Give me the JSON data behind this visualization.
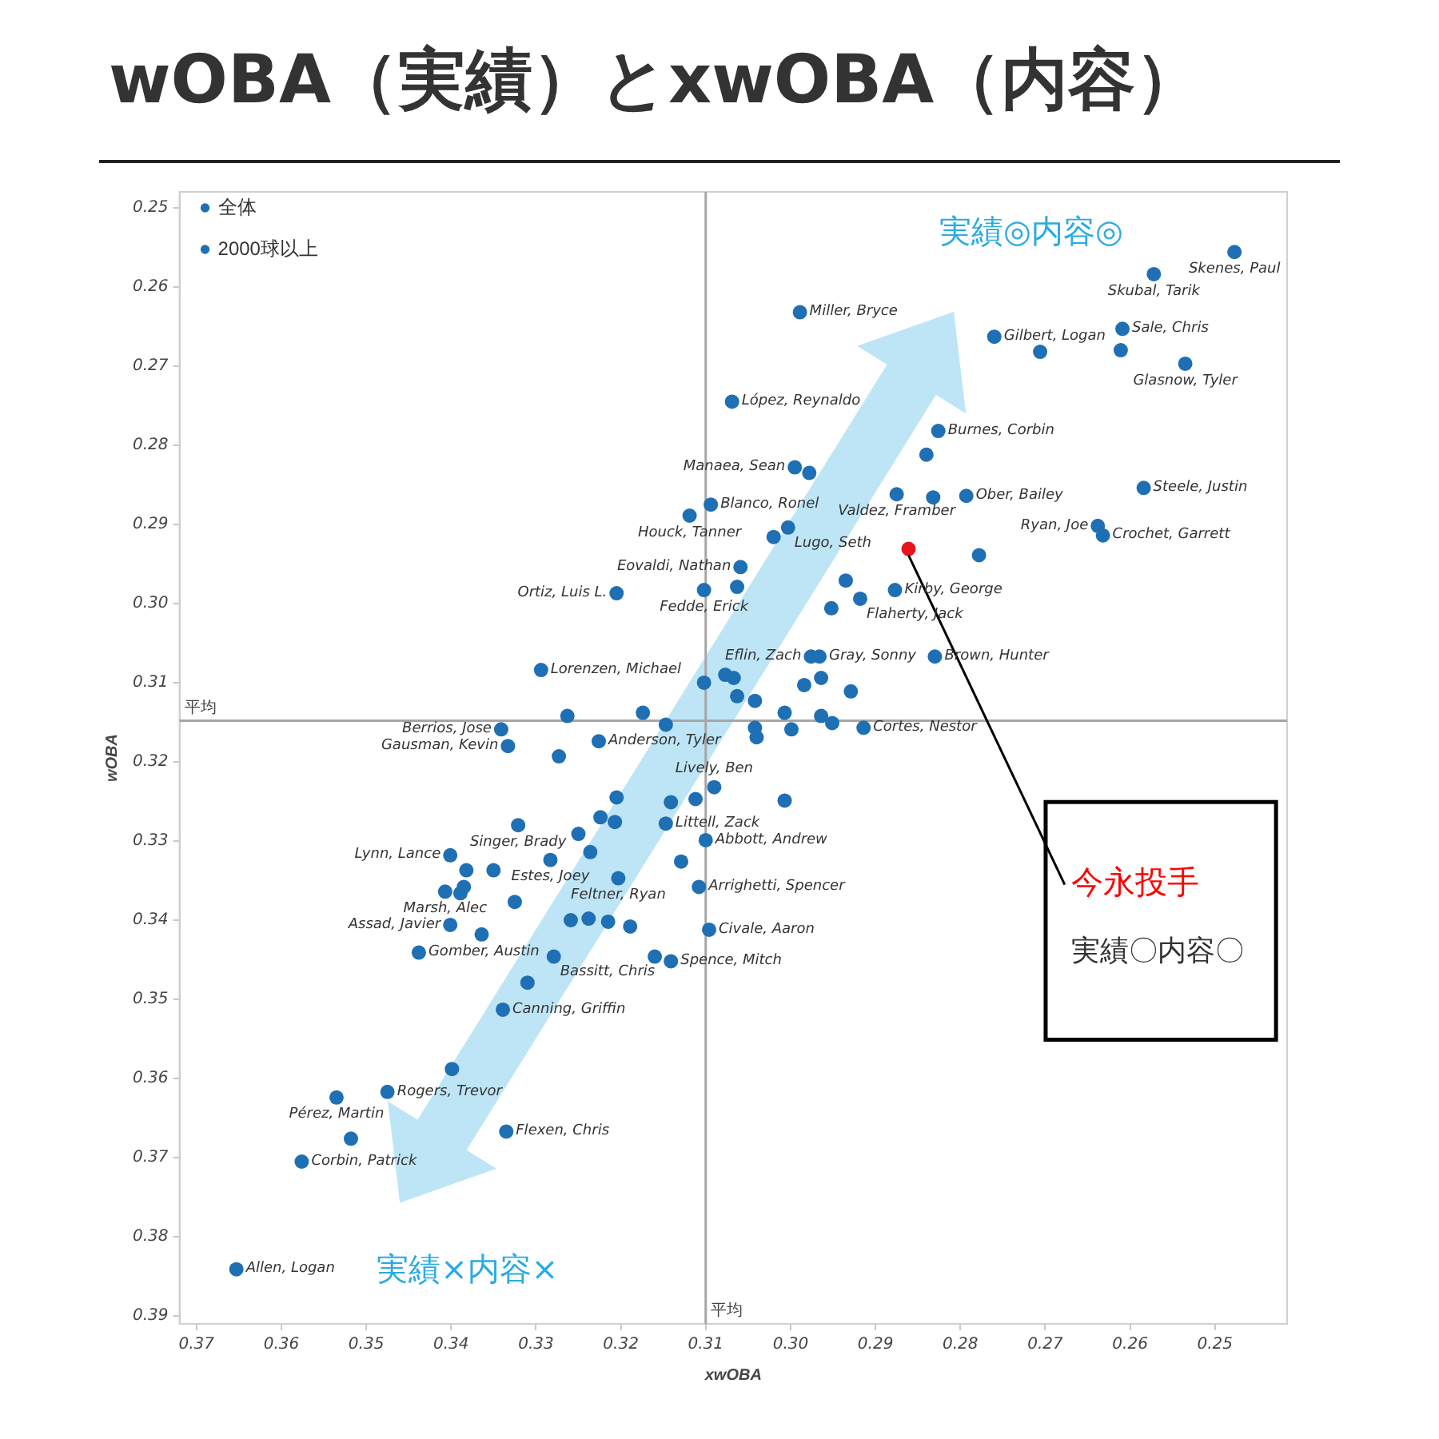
{
  "chart_data": {
    "type": "scatter",
    "title": "wOBA（実績）とxwOBA（内容）",
    "xlabel": "xwOBA",
    "ylabel": "wOBA",
    "xlim": [
      0.372,
      0.2415
    ],
    "ylim": [
      0.391,
      0.248
    ],
    "xticks": [
      0.37,
      0.36,
      0.35,
      0.34,
      0.33,
      0.32,
      0.31,
      {
        "value": 0.3,
        "label": "0.30"
      },
      0.29,
      0.28,
      0.27,
      0.26,
      0.25
    ],
    "yticks": [
      0.25,
      0.26,
      0.27,
      0.28,
      0.29,
      {
        "value": 0.3,
        "label": "0.30"
      },
      0.31,
      0.32,
      0.33,
      0.34,
      0.35,
      0.36,
      0.37,
      0.38,
      0.39
    ],
    "grid": false,
    "legend": "top left",
    "marker": "circle",
    "ref_lines": [
      {
        "axis": "x",
        "value": 0.31,
        "label": "平均",
        "color": "#a6a6a6"
      },
      {
        "axis": "y",
        "value": 0.3148,
        "label": "平均",
        "color": "#a6a6a6"
      }
    ],
    "series": [
      {
        "name": "全体",
        "color": "#1f6fb4",
        "x": [
          0.2706,
          0.2611,
          0.284,
          0.2832,
          0.2778,
          0.2978,
          0.302,
          0.3063,
          0.2935,
          0.2952,
          0.3077,
          0.3067,
          0.3102,
          0.3063,
          0.2984,
          0.2964,
          0.2929,
          0.3042,
          0.3263,
          0.3174,
          0.3147,
          0.3007,
          0.2964,
          0.2951,
          0.3042,
          0.304,
          0.2999,
          0.3273,
          0.3112,
          0.3141,
          0.3205,
          0.3007,
          0.3224,
          0.3207,
          0.325,
          0.3236,
          0.3129,
          0.3382,
          0.335,
          0.3389,
          0.3385,
          0.3325,
          0.3364,
          0.3259,
          0.3238,
          0.3215,
          0.3189,
          0.316,
          0.331,
          0.3399,
          0.3518
        ],
        "values": [
          0.2682,
          0.268,
          0.2812,
          0.2866,
          0.2939,
          0.2835,
          0.2916,
          0.2979,
          0.2971,
          0.3006,
          0.309,
          0.3094,
          0.31,
          0.3117,
          0.3103,
          0.3094,
          0.3111,
          0.3123,
          0.3142,
          0.3138,
          0.3153,
          0.3138,
          0.3142,
          0.3151,
          0.3157,
          0.3169,
          0.3159,
          0.3193,
          0.3247,
          0.3251,
          0.3245,
          0.3249,
          0.327,
          0.3276,
          0.3291,
          0.3314,
          0.3326,
          0.3337,
          0.3337,
          0.3366,
          0.3358,
          0.3377,
          0.3418,
          0.34,
          0.3398,
          0.3402,
          0.3408,
          0.3446,
          0.3479,
          0.3588,
          0.3676
        ]
      },
      {
        "name": "2000球以上",
        "color": "#1f6fb4",
        "x": [
          0.2477,
          0.2572,
          0.2609,
          0.2535,
          0.276,
          0.2826,
          0.2875,
          0.2793,
          0.2584,
          0.2638,
          0.2632,
          0.2877,
          0.2918,
          0.283,
          0.2989,
          0.3069,
          0.2995,
          0.3094,
          0.3119,
          0.3003,
          0.3059,
          0.3102,
          0.3205,
          0.2976,
          0.2966,
          0.3294,
          0.2914,
          0.3341,
          0.3333,
          0.3226,
          0.309,
          0.3147,
          0.3321,
          0.31,
          0.3401,
          0.3283,
          0.3203,
          0.3108,
          0.3407,
          0.3401,
          0.3096,
          0.3438,
          0.3279,
          0.3141,
          0.3339,
          0.3535,
          0.3475,
          0.3335,
          0.3576,
          0.3653
        ],
        "values": [
          0.2556,
          0.2584,
          0.2653,
          0.2697,
          0.2663,
          0.2782,
          0.2862,
          0.2864,
          0.2854,
          0.2902,
          0.2914,
          0.2983,
          0.2994,
          0.3067,
          0.2632,
          0.2745,
          0.2828,
          0.2875,
          0.2889,
          0.2904,
          0.2954,
          0.2983,
          0.2987,
          0.3067,
          0.3067,
          0.3084,
          0.3157,
          0.3159,
          0.318,
          0.3174,
          0.3232,
          0.3278,
          0.328,
          0.3299,
          0.3318,
          0.3324,
          0.3347,
          0.3358,
          0.3364,
          0.3406,
          0.3412,
          0.3441,
          0.3446,
          0.3452,
          0.3513,
          0.3624,
          0.3617,
          0.3667,
          0.3705,
          0.3841
        ]
      },
      {
        "color": "#e8141b",
        "x": [
          0.2861
        ],
        "values": [
          0.2931
        ]
      }
    ],
    "annotations": [
      "実績◎内容◎",
      "実績×内容×",
      {
        "text": "今永投手",
        "x": 0.2861,
        "y": 0.2931
      },
      "実績〇内容〇",
      {
        "text": "Skenes, Paul",
        "x": 0.2477,
        "y": 0.2556
      },
      {
        "text": "Skubal, Tarik",
        "x": 0.2572,
        "y": 0.2584
      },
      {
        "text": "Sale, Chris",
        "x": 0.2609,
        "y": 0.2653
      },
      {
        "text": "Glasnow, Tyler",
        "x": 0.2535,
        "y": 0.2697
      },
      {
        "text": "Gilbert, Logan",
        "x": 0.276,
        "y": 0.2663
      },
      {
        "text": "Burnes, Corbin",
        "x": 0.2826,
        "y": 0.2782
      },
      {
        "text": "Valdez, Framber",
        "x": 0.2875,
        "y": 0.2862
      },
      {
        "text": "Ober, Bailey",
        "x": 0.2793,
        "y": 0.2864
      },
      {
        "text": "Steele, Justin",
        "x": 0.2584,
        "y": 0.2854
      },
      {
        "text": "Ryan, Joe",
        "x": 0.2638,
        "y": 0.2902
      },
      {
        "text": "Crochet, Garrett",
        "x": 0.2632,
        "y": 0.2914
      },
      {
        "text": "Kirby, George",
        "x": 0.2877,
        "y": 0.2983
      },
      {
        "text": "Flaherty, Jack",
        "x": 0.2918,
        "y": 0.2994
      },
      {
        "text": "Brown, Hunter",
        "x": 0.283,
        "y": 0.3067
      },
      {
        "text": "Miller, Bryce",
        "x": 0.2989,
        "y": 0.2632
      },
      {
        "text": "López, Reynaldo",
        "x": 0.3069,
        "y": 0.2745
      },
      {
        "text": "Manaea, Sean",
        "x": 0.2995,
        "y": 0.2828
      },
      {
        "text": "Blanco, Ronel",
        "x": 0.3094,
        "y": 0.2875
      },
      {
        "text": "Houck, Tanner",
        "x": 0.3119,
        "y": 0.2889
      },
      {
        "text": "Lugo, Seth",
        "x": 0.3003,
        "y": 0.2904
      },
      {
        "text": "Eovaldi, Nathan",
        "x": 0.3059,
        "y": 0.2954
      },
      {
        "text": "Fedde, Erick",
        "x": 0.3102,
        "y": 0.2983
      },
      {
        "text": "Ortiz, Luis L.",
        "x": 0.3205,
        "y": 0.2987
      },
      {
        "text": "Eflin, Zach",
        "x": 0.2976,
        "y": 0.3067
      },
      {
        "text": "Gray, Sonny",
        "x": 0.2966,
        "y": 0.3067
      },
      {
        "text": "Lorenzen, Michael",
        "x": 0.3294,
        "y": 0.3084
      },
      {
        "text": "Cortes, Nestor",
        "x": 0.2914,
        "y": 0.3157
      },
      {
        "text": "Berrios, Jose",
        "x": 0.3341,
        "y": 0.3159
      },
      {
        "text": "Gausman, Kevin",
        "x": 0.3333,
        "y": 0.318
      },
      {
        "text": "Anderson, Tyler",
        "x": 0.3226,
        "y": 0.3174
      },
      {
        "text": "Lively, Ben",
        "x": 0.309,
        "y": 0.3232
      },
      {
        "text": "Littell, Zack",
        "x": 0.3147,
        "y": 0.3278
      },
      {
        "text": "Singer, Brady",
        "x": 0.3321,
        "y": 0.328
      },
      {
        "text": "Abbott, Andrew",
        "x": 0.31,
        "y": 0.3299
      },
      {
        "text": "Lynn, Lance",
        "x": 0.3401,
        "y": 0.3318
      },
      {
        "text": "Estes, Joey",
        "x": 0.3283,
        "y": 0.3324
      },
      {
        "text": "Feltner, Ryan",
        "x": 0.3203,
        "y": 0.3347
      },
      {
        "text": "Arrighetti, Spencer",
        "x": 0.3108,
        "y": 0.3358
      },
      {
        "text": "Marsh, Alec",
        "x": 0.3407,
        "y": 0.3364
      },
      {
        "text": "Assad, Javier",
        "x": 0.3401,
        "y": 0.3406
      },
      {
        "text": "Civale, Aaron",
        "x": 0.3096,
        "y": 0.3412
      },
      {
        "text": "Gomber, Austin",
        "x": 0.3438,
        "y": 0.3441
      },
      {
        "text": "Bassitt, Chris",
        "x": 0.3279,
        "y": 0.3446
      },
      {
        "text": "Spence, Mitch",
        "x": 0.3141,
        "y": 0.3452
      },
      {
        "text": "Canning, Griffin",
        "x": 0.3339,
        "y": 0.3513
      },
      {
        "text": "Pérez, Martin",
        "x": 0.3535,
        "y": 0.3624
      },
      {
        "text": "Rogers, Trevor",
        "x": 0.3475,
        "y": 0.3617
      },
      {
        "text": "Flexen, Chris",
        "x": 0.3335,
        "y": 0.3667
      },
      {
        "text": "Corbin, Patrick",
        "x": 0.3576,
        "y": 0.3705
      },
      {
        "text": "Allen, Logan",
        "x": 0.3653,
        "y": 0.3841
      }
    ]
  }
}
